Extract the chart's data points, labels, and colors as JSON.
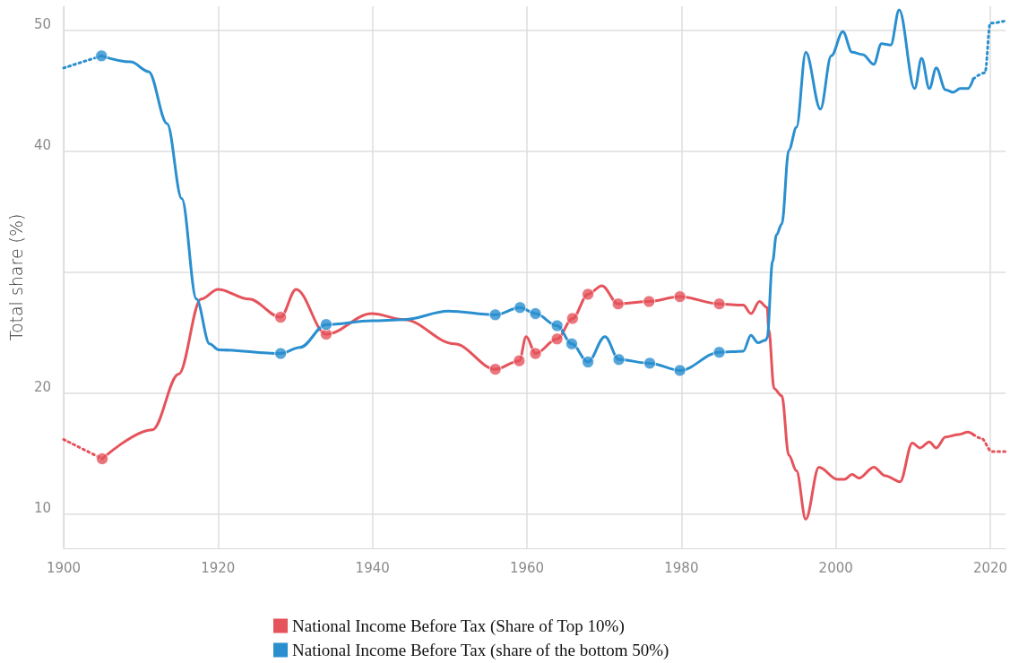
{
  "chart_data": {
    "type": "line",
    "ylabel": "Total share (%)",
    "xlim": [
      1900,
      2022
    ],
    "xticks": [
      1900,
      1920,
      1940,
      1960,
      1980,
      2000,
      2020
    ],
    "ylim": [
      7.2,
      52
    ],
    "yticks": [
      10,
      20,
      {
        "value": 30,
        "label": null
      },
      40,
      50
    ],
    "grid": true,
    "legend": "bottom",
    "marker": "none",
    "series": [
      {
        "name": "National Income Before Tax (Share of Top 10%)",
        "color": "#e5535b",
        "line_style": "solid",
        "x": [
          1905,
          1911.5,
          1914.9,
          1917.8,
          1920,
          1924,
          1928.1,
          1930.1,
          1934,
          1939.9,
          1944.1,
          1950.6,
          1955.9,
          1959,
          1959.9,
          1961.1,
          1963.9,
          1965.9,
          1967.9,
          1969.7,
          1971.8,
          1975.8,
          1979.8,
          1984.9,
          1988,
          1989,
          1990.1,
          1991.1,
          1991.3,
          1992,
          1993,
          1993.9,
          1994.9,
          1996.1,
          1997.8,
          2000.2,
          2001.1,
          2002.1,
          2003,
          2004.9,
          2006.4,
          2008.3,
          2009.9,
          2010.9,
          2012.1,
          2013,
          2014.2,
          2015.9,
          2017.1,
          2017.8
        ],
        "values": [
          14.6,
          17.0,
          21.6,
          27.8,
          28.6,
          27.8,
          26.3,
          28.6,
          24.9,
          26.6,
          26.1,
          24.1,
          22.0,
          22.7,
          24.7,
          23.3,
          24.5,
          26.2,
          28.2,
          28.9,
          27.4,
          27.6,
          28.0,
          27.4,
          27.3,
          26.6,
          27.6,
          27.1,
          25.3,
          20.4,
          19.8,
          14.9,
          13.6,
          9.6,
          13.9,
          12.9,
          12.9,
          13.3,
          13.0,
          13.9,
          13.2,
          12.7,
          15.9,
          15.5,
          16.0,
          15.5,
          16.4,
          16.6,
          16.8,
          16.6
        ]
      },
      {
        "name": "National Income Before Tax (share of the bottom 50%)",
        "color": "#2a8fcf",
        "line_style": "solid",
        "x": [
          1904.9,
          1908.7,
          1911,
          1913.4,
          1915.3,
          1917.2,
          1918.9,
          1920.1,
          1928.1,
          1930.6,
          1934,
          1939.9,
          1944.1,
          1949.8,
          1955.9,
          1959.1,
          1961.1,
          1963.9,
          1965.8,
          1967.9,
          1970.1,
          1971.9,
          1975.9,
          1979.8,
          1984.9,
          1988,
          1989,
          1989.9,
          1990.9,
          1991.1,
          1991.8,
          1992.3,
          1993,
          1993.9,
          1994.9,
          1996.1,
          1998,
          1999.4,
          2000.9,
          2002.1,
          2003.5,
          2004.9,
          2005.9,
          2007.1,
          2008.2,
          2010.2,
          2011.1,
          2012.1,
          2013,
          2014.2,
          2015.2,
          2016.1,
          2017.1,
          2017.8
        ],
        "values": [
          47.9,
          47.4,
          46.6,
          42.3,
          36.1,
          27.8,
          24.1,
          23.6,
          23.3,
          23.8,
          25.7,
          26.0,
          26.1,
          26.8,
          26.5,
          27.1,
          26.6,
          25.6,
          24.1,
          22.6,
          24.7,
          22.8,
          22.5,
          21.9,
          23.4,
          23.5,
          24.8,
          24.2,
          24.4,
          24.6,
          30.9,
          33.1,
          34.0,
          40.1,
          42.0,
          48.2,
          43.5,
          47.9,
          49.9,
          48.2,
          48.0,
          47.2,
          48.9,
          48.8,
          51.7,
          45.2,
          47.7,
          45.2,
          46.9,
          45.1,
          44.9,
          45.2,
          45.2,
          46.0
        ]
      },
      {
        "color": "#e5535b",
        "line_style": "dotted",
        "x": [
          1900,
          1905,
          1961,
          2017.8,
          2018.8,
          2020.2,
          2022
        ],
        "values": [
          16.2,
          14.6,
          null,
          16.6,
          16.3,
          15.2,
          15.2
        ]
      },
      {
        "color": "#2a8fcf",
        "line_style": "dotted",
        "x": [
          1900,
          1904.9,
          1961,
          2017.8,
          2019.3,
          2020,
          2022
        ],
        "values": [
          46.9,
          47.9,
          null,
          46.0,
          46.5,
          50.6,
          50.8
        ]
      },
      {
        "type": "scatter",
        "marker": "circle",
        "color": "#e5535b",
        "x": [
          1905,
          1928.1,
          1934,
          1955.9,
          1959,
          1961.1,
          1963.9,
          1965.9,
          1967.9,
          1971.8,
          1975.8,
          1979.8,
          1984.9
        ],
        "values": [
          14.6,
          26.3,
          24.9,
          22.0,
          22.7,
          23.3,
          24.5,
          26.2,
          28.2,
          27.4,
          27.6,
          28.0,
          27.4
        ]
      },
      {
        "type": "scatter",
        "marker": "circle",
        "color": "#2a8fcf",
        "x": [
          1904.9,
          1928.1,
          1934,
          1955.9,
          1959.1,
          1961.1,
          1963.9,
          1965.8,
          1967.9,
          1971.9,
          1975.9,
          1979.8,
          1984.9
        ],
        "values": [
          47.9,
          23.3,
          25.7,
          26.5,
          27.1,
          26.6,
          25.6,
          24.1,
          22.6,
          22.8,
          22.5,
          21.9,
          23.4
        ]
      }
    ]
  }
}
